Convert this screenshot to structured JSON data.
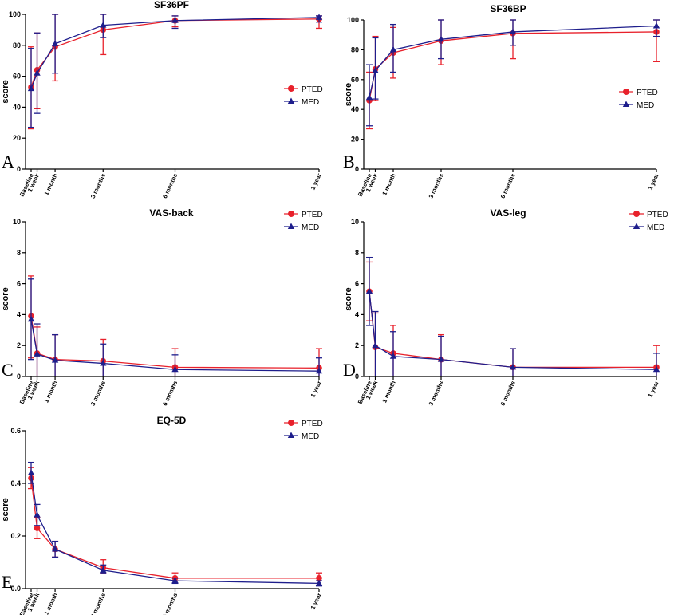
{
  "chart_data": [
    {
      "panel": "A",
      "type": "line",
      "title": "SF36PF",
      "ylabel": "score",
      "ylim": [
        0,
        100
      ],
      "yticks": [
        0,
        20,
        40,
        60,
        80,
        100
      ],
      "x_labels": [
        "Baseline",
        "1 week",
        "1 month",
        "3 months",
        "6 months",
        "1 year"
      ],
      "x_months": [
        0,
        0.25,
        1,
        3,
        6,
        12
      ],
      "series": [
        {
          "name": "PTED",
          "values": [
            53,
            64,
            79,
            90,
            96,
            97
          ],
          "err_low": [
            26,
            39,
            57,
            74,
            92,
            91
          ],
          "err_high": [
            79,
            88,
            100,
            100,
            99,
            99
          ]
        },
        {
          "name": "MED",
          "values": [
            52,
            62,
            81,
            93,
            96,
            98
          ],
          "err_low": [
            27,
            36,
            62,
            85,
            91,
            95
          ],
          "err_high": [
            78,
            88,
            100,
            100,
            99,
            99
          ]
        }
      ]
    },
    {
      "panel": "B",
      "type": "line",
      "title": "SF36BP",
      "ylabel": "score",
      "ylim": [
        0,
        100
      ],
      "yticks": [
        0,
        20,
        40,
        60,
        80,
        100
      ],
      "x_labels": [
        "Baseline",
        "1 week",
        "1 month",
        "3 months",
        "6 months",
        "1 year"
      ],
      "x_months": [
        0,
        0.25,
        1,
        3,
        6,
        12
      ],
      "series": [
        {
          "name": "PTED",
          "values": [
            46,
            67,
            78,
            86,
            91,
            92
          ],
          "err_low": [
            27,
            46,
            61,
            70,
            74,
            72
          ],
          "err_high": [
            65,
            89,
            95,
            100,
            100,
            100
          ]
        },
        {
          "name": "MED",
          "values": [
            48,
            66,
            80,
            87,
            92,
            96
          ],
          "err_low": [
            29,
            47,
            65,
            74,
            83,
            89
          ],
          "err_high": [
            70,
            88,
            97,
            100,
            100,
            100
          ]
        }
      ]
    },
    {
      "panel": "C",
      "type": "line",
      "title": "VAS-back",
      "ylabel": "score",
      "ylim": [
        0,
        10
      ],
      "yticks": [
        0,
        2,
        4,
        6,
        8,
        10
      ],
      "x_labels": [
        "Baseline",
        "1 week",
        "1 month",
        "3 months",
        "6 months",
        "1 year"
      ],
      "x_months": [
        0,
        0.25,
        1,
        3,
        6,
        12
      ],
      "series": [
        {
          "name": "PTED",
          "values": [
            3.9,
            1.5,
            1.1,
            1.0,
            0.6,
            0.55
          ],
          "err_low": [
            1.2,
            0,
            0,
            0,
            0,
            0
          ],
          "err_high": [
            6.5,
            3.2,
            2.7,
            2.4,
            1.8,
            1.8
          ]
        },
        {
          "name": "MED",
          "values": [
            3.7,
            1.45,
            1.05,
            0.85,
            0.45,
            0.35
          ],
          "err_low": [
            1.1,
            0,
            0,
            0,
            0,
            0
          ],
          "err_high": [
            6.3,
            3.4,
            2.7,
            2.1,
            1.4,
            1.2
          ]
        }
      ]
    },
    {
      "panel": "D",
      "type": "line",
      "title": "VAS-leg",
      "ylabel": "score",
      "ylim": [
        0,
        10
      ],
      "yticks": [
        0,
        2,
        4,
        6,
        8,
        10
      ],
      "x_labels": [
        "Baseline",
        "1 week",
        "1 month",
        "3 months",
        "6 months",
        "1 year"
      ],
      "x_months": [
        0,
        0.25,
        1,
        3,
        6,
        12
      ],
      "series": [
        {
          "name": "PTED",
          "values": [
            5.5,
            1.9,
            1.5,
            1.1,
            0.6,
            0.6
          ],
          "err_low": [
            3.6,
            0,
            0,
            0,
            0,
            0
          ],
          "err_high": [
            7.4,
            4.1,
            3.3,
            2.7,
            1.8,
            2.0
          ]
        },
        {
          "name": "MED",
          "values": [
            5.5,
            2.0,
            1.3,
            1.1,
            0.6,
            0.45
          ],
          "err_low": [
            3.3,
            0,
            0,
            0,
            0,
            0
          ],
          "err_high": [
            7.7,
            4.2,
            2.9,
            2.6,
            1.8,
            1.5
          ]
        }
      ]
    },
    {
      "panel": "E",
      "type": "line",
      "title": "EQ-5D",
      "ylabel": "score",
      "ylim": [
        0,
        0.6
      ],
      "yticks": [
        0.0,
        0.2,
        0.4,
        0.6
      ],
      "x_labels": [
        "Baseline",
        "1 week",
        "1 month",
        "3 months",
        "6 months",
        "1 year"
      ],
      "x_months": [
        0,
        0.25,
        1,
        3,
        6,
        12
      ],
      "series": [
        {
          "name": "PTED",
          "values": [
            0.42,
            0.23,
            0.15,
            0.08,
            0.04,
            0.04
          ],
          "err_low": [
            0.38,
            0.19,
            0.12,
            0.06,
            0.03,
            0.03
          ],
          "err_high": [
            0.46,
            0.27,
            0.18,
            0.11,
            0.06,
            0.06
          ]
        },
        {
          "name": "MED",
          "values": [
            0.44,
            0.28,
            0.15,
            0.07,
            0.03,
            0.02
          ],
          "err_low": [
            0.4,
            0.24,
            0.12,
            0.06,
            0.02,
            0.01
          ],
          "err_high": [
            0.48,
            0.32,
            0.18,
            0.09,
            0.04,
            0.03
          ]
        }
      ]
    }
  ],
  "style": {
    "pted_color": "#e8212b",
    "med_color": "#1e1e8c",
    "pted_marker": "circle",
    "med_marker": "triangle"
  }
}
